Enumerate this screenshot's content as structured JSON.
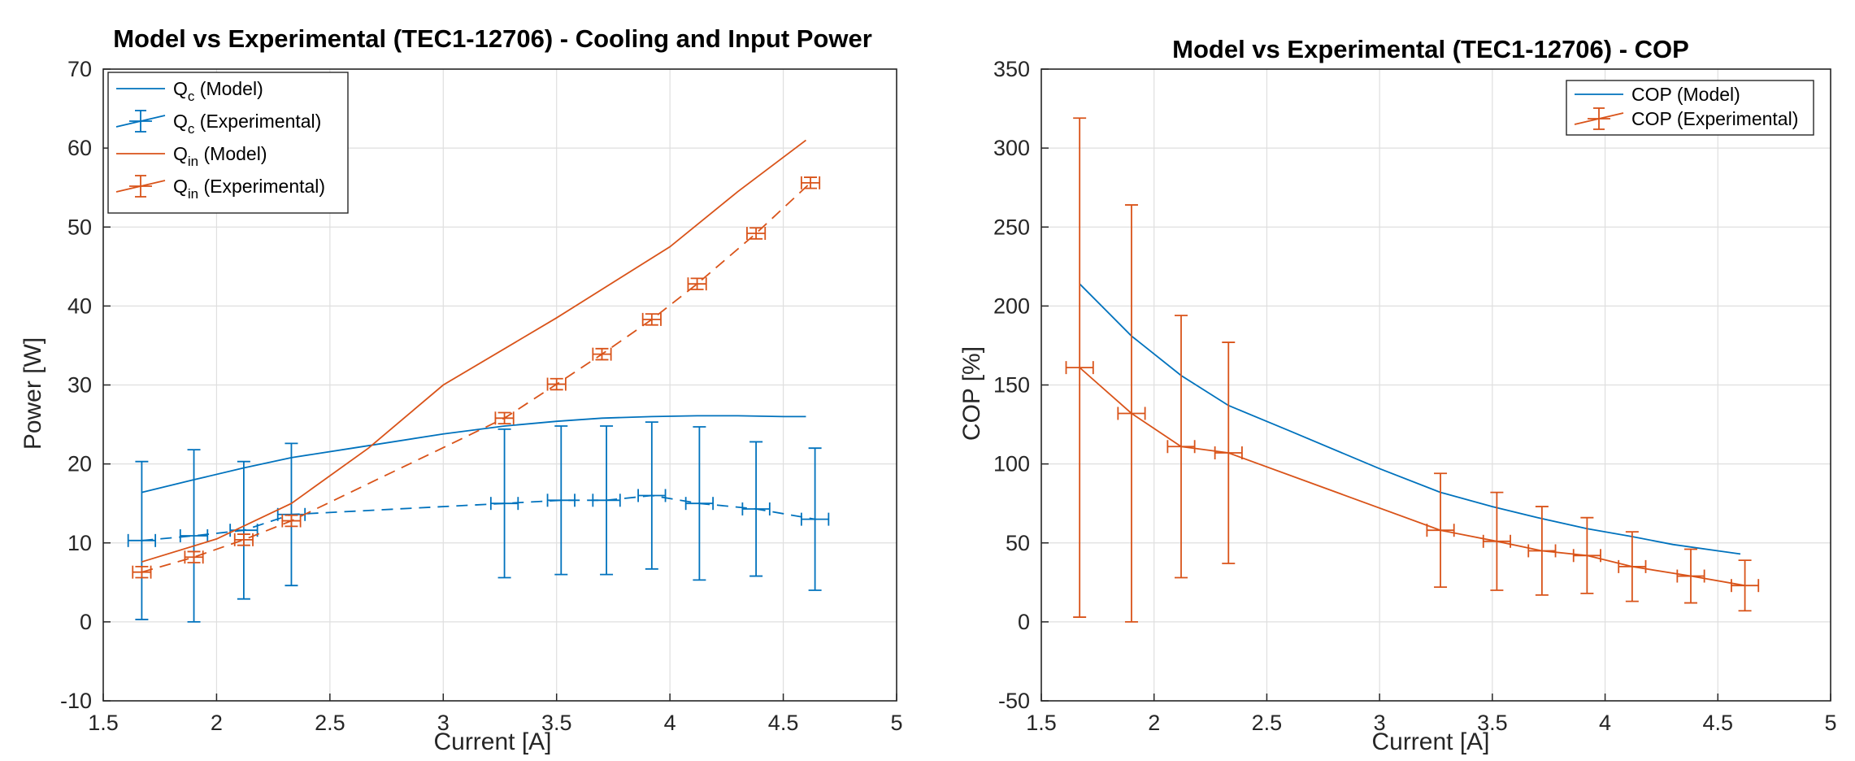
{
  "colors": {
    "blue": "#0072BD",
    "orange": "#D95319",
    "grid": "#DFDFDF",
    "axis": "#262626"
  },
  "chart_data": [
    {
      "type": "line",
      "title": "Model vs Experimental (TEC1-12706) - Cooling and Input Power",
      "xlabel": "Current [A]",
      "ylabel": "Power [W]",
      "xlim": [
        1.5,
        5
      ],
      "ylim": [
        -10,
        70
      ],
      "xticks": [
        "1.5",
        "2",
        "2.5",
        "3",
        "3.5",
        "4",
        "4.5",
        "5"
      ],
      "yticks": [
        "-10",
        "0",
        "10",
        "20",
        "30",
        "40",
        "50",
        "60",
        "70"
      ],
      "grid": true,
      "legend_position": "top-left",
      "series": [
        {
          "name": "Q",
          "sub": "c",
          "suffix": "(Model)",
          "color": "orange-blue",
          "style": "solid",
          "colorKey": "blue",
          "x": [
            1.67,
            1.9,
            2.12,
            2.33,
            2.6,
            3.0,
            3.27,
            3.5,
            3.7,
            3.92,
            4.12,
            4.3,
            4.5,
            4.6
          ],
          "y": [
            16.4,
            18.0,
            19.5,
            20.8,
            22.0,
            23.8,
            24.8,
            25.4,
            25.8,
            26.0,
            26.1,
            26.1,
            26.0,
            26.0
          ]
        },
        {
          "name": "Q",
          "sub": "c",
          "suffix": "(Experimental)",
          "style": "dashed-errorbar",
          "colorKey": "blue",
          "x": [
            1.67,
            1.9,
            2.12,
            2.33,
            3.27,
            3.52,
            3.72,
            3.92,
            4.13,
            4.38,
            4.64
          ],
          "y": [
            10.3,
            10.9,
            11.6,
            13.6,
            15.0,
            15.4,
            15.4,
            16.0,
            15.0,
            14.3,
            13.0
          ],
          "yerr": [
            10.0,
            10.9,
            8.7,
            9.0,
            9.4,
            9.4,
            9.4,
            9.3,
            9.7,
            8.5,
            9.0
          ],
          "xerr": [
            0.06,
            0.06,
            0.06,
            0.06,
            0.06,
            0.06,
            0.06,
            0.06,
            0.06,
            0.06,
            0.06
          ]
        },
        {
          "name": "Q",
          "sub": "in",
          "suffix": "(Model)",
          "style": "solid",
          "colorKey": "orange",
          "x": [
            1.67,
            2.0,
            2.33,
            2.67,
            3.0,
            3.5,
            4.0,
            4.3,
            4.6
          ],
          "y": [
            7.6,
            10.5,
            15.0,
            22.0,
            30.0,
            38.5,
            47.5,
            54.5,
            61.0
          ]
        },
        {
          "name": "Q",
          "sub": "in",
          "suffix": "(Experimental)",
          "style": "dashed-errorbar",
          "colorKey": "orange",
          "x": [
            1.67,
            1.9,
            2.12,
            2.33,
            3.27,
            3.5,
            3.7,
            3.92,
            4.12,
            4.38,
            4.62
          ],
          "y": [
            6.3,
            8.2,
            10.4,
            12.8,
            25.8,
            30.1,
            33.9,
            38.3,
            42.8,
            49.2,
            55.6
          ],
          "yerr": [
            0.7,
            0.7,
            0.7,
            0.7,
            0.7,
            0.7,
            0.7,
            0.7,
            0.7,
            0.7,
            0.7
          ],
          "xerr": [
            0.04,
            0.04,
            0.04,
            0.04,
            0.04,
            0.04,
            0.04,
            0.04,
            0.04,
            0.04,
            0.04
          ]
        }
      ]
    },
    {
      "type": "line",
      "title": "Model vs Experimental (TEC1-12706) - COP",
      "xlabel": "Current [A]",
      "ylabel": "COP [%]",
      "xlim": [
        1.5,
        5
      ],
      "ylim": [
        -50,
        350
      ],
      "xticks": [
        "1.5",
        "2",
        "2.5",
        "3",
        "3.5",
        "4",
        "4.5",
        "5"
      ],
      "yticks": [
        "-50",
        "0",
        "50",
        "100",
        "150",
        "200",
        "250",
        "300",
        "350"
      ],
      "grid": true,
      "legend_position": "top-right",
      "series": [
        {
          "name": "COP",
          "suffix": "(Model)",
          "style": "solid",
          "colorKey": "blue",
          "x": [
            1.67,
            1.9,
            2.12,
            2.33,
            2.6,
            3.0,
            3.27,
            3.5,
            3.7,
            3.92,
            4.12,
            4.3,
            4.5,
            4.6
          ],
          "y": [
            214,
            181,
            156,
            137,
            121,
            97,
            82,
            73,
            66,
            59,
            54,
            49,
            45,
            43
          ]
        },
        {
          "name": "COP",
          "suffix": "(Experimental)",
          "style": "solid-errorbar",
          "colorKey": "orange",
          "x": [
            1.67,
            1.9,
            2.12,
            2.33,
            3.27,
            3.52,
            3.72,
            3.92,
            4.12,
            4.38,
            4.62
          ],
          "y": [
            161,
            132,
            111,
            107,
            58,
            51,
            45,
            42,
            35,
            29,
            23
          ],
          "yerr": [
            158,
            132,
            83,
            70,
            36,
            31,
            28,
            24,
            22,
            17,
            16
          ],
          "xerr": [
            0.06,
            0.06,
            0.06,
            0.06,
            0.06,
            0.06,
            0.06,
            0.06,
            0.06,
            0.06,
            0.06
          ]
        }
      ]
    }
  ]
}
